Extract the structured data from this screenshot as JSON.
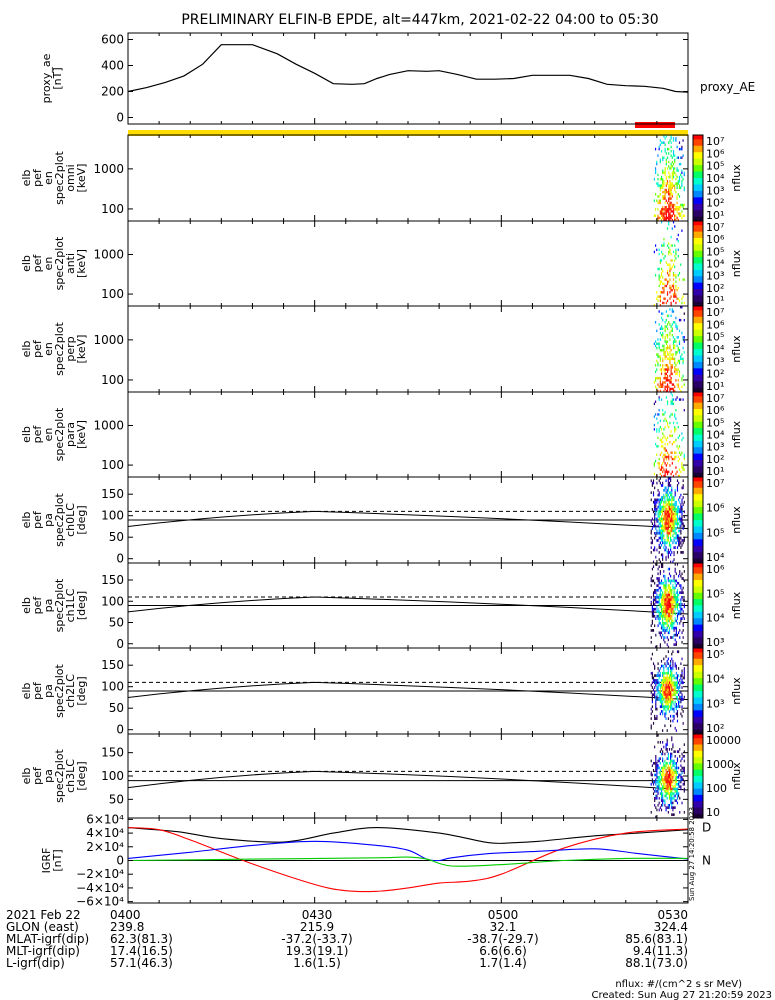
{
  "title": "PRELIMINARY ELFIN-B EPDE, alt=447km, 2021-02-22 04:00 to 05:30",
  "colors": {
    "ae_line": "#000000",
    "yellow_bar": "#ffdd00",
    "red_bar": "#ff0000",
    "igrf_d": "#000000",
    "igrf_a": "#ff0000",
    "igrf_b": "#0000ff",
    "igrf_c": "#00cc00"
  },
  "panels": [
    {
      "ylabel": [
        "proxy_ae",
        "[nT]"
      ],
      "right_label": "proxy_AE",
      "yticks": [
        "600",
        "400",
        "200",
        "0"
      ]
    },
    {
      "ylabel": [
        "elb",
        "pef",
        "en",
        "spec2plot",
        "omni",
        "[keV]"
      ],
      "yticks": [
        "1000",
        "100"
      ],
      "cb_label": "nflux",
      "cb_ticks": [
        "10⁷",
        "10⁶",
        "10⁵",
        "10⁴",
        "10³",
        "10²",
        "10¹"
      ]
    },
    {
      "ylabel": [
        "elb",
        "pef",
        "en",
        "spec2plot",
        "anti",
        "[keV]"
      ],
      "yticks": [
        "1000",
        "100"
      ],
      "cb_label": "nflux",
      "cb_ticks": [
        "10⁷",
        "10⁶",
        "10⁵",
        "10⁴",
        "10³",
        "10²",
        "10¹"
      ]
    },
    {
      "ylabel": [
        "elb",
        "pef",
        "en",
        "spec2plot",
        "perp",
        "[keV]"
      ],
      "yticks": [
        "1000",
        "100"
      ],
      "cb_label": "nflux",
      "cb_ticks": [
        "10⁷",
        "10⁶",
        "10⁵",
        "10⁴",
        "10³",
        "10²",
        "10¹"
      ]
    },
    {
      "ylabel": [
        "elb",
        "pef",
        "en",
        "spec2plot",
        "para",
        "[keV]"
      ],
      "yticks": [
        "1000",
        "100"
      ],
      "cb_label": "nflux",
      "cb_ticks": [
        "10⁷",
        "10⁶",
        "10⁵",
        "10⁴",
        "10³",
        "10²",
        "10¹"
      ]
    },
    {
      "ylabel": [
        "elb",
        "pef",
        "pa",
        "spec2plot",
        "ch0LC",
        "[deg]"
      ],
      "yticks": [
        "150",
        "100",
        "50",
        "0"
      ],
      "cb_label": "nflux",
      "cb_ticks": [
        "10⁷",
        "10⁶",
        "10⁵",
        "10⁴"
      ]
    },
    {
      "ylabel": [
        "elb",
        "pef",
        "pa",
        "spec2plot",
        "ch1LC",
        "[deg]"
      ],
      "yticks": [
        "150",
        "100",
        "50",
        "0"
      ],
      "cb_label": "nflux",
      "cb_ticks": [
        "10⁶",
        "10⁵",
        "10⁴",
        "10³"
      ]
    },
    {
      "ylabel": [
        "elb",
        "pef",
        "pa",
        "spec2plot",
        "ch2LC",
        "[deg]"
      ],
      "yticks": [
        "150",
        "100",
        "50",
        "0"
      ],
      "cb_label": "nflux",
      "cb_ticks": [
        "10⁵",
        "10⁴",
        "10³",
        "10²"
      ]
    },
    {
      "ylabel": [
        "elb",
        "pef",
        "pa",
        "spec2plot",
        "ch3LC",
        "[deg]"
      ],
      "yticks": [
        "150",
        "100",
        "50"
      ],
      "cb_label": "nflux",
      "cb_ticks": [
        "10000",
        "1000",
        "100",
        "10"
      ]
    },
    {
      "ylabel": [
        "IGRF",
        "[nT]"
      ],
      "yticks": [
        "6×10⁴",
        "4×10⁴",
        "2×10⁴",
        "0",
        "−2×10⁴",
        "−4×10⁴",
        "−6×10⁴"
      ],
      "right_labels": [
        "D",
        "N"
      ],
      "stamp": "Sun Aug 27 14:20:58 2023"
    }
  ],
  "footer": {
    "date_label": "2021 Feb 22",
    "rows": [
      {
        "label": "",
        "values": [
          "0400",
          "0430",
          "0500",
          "0530"
        ]
      },
      {
        "label": "GLON (east)",
        "values": [
          "239.8",
          "215.9",
          "32.1",
          "324.4"
        ]
      },
      {
        "label": "MLAT-igrf(dip)",
        "values": [
          "62.3(81.3)",
          "-37.2(-33.7)",
          "-38.7(-29.7)",
          "85.6(83.1)"
        ]
      },
      {
        "label": "MLT-igrf(dip)",
        "values": [
          "17.4(16.5)",
          "19.3(19.1)",
          "6.6(6.6)",
          "9.4(11.3)"
        ]
      },
      {
        "label": "L-igrf(dip)",
        "values": [
          "57.1(46.3)",
          "1.6(1.5)",
          "1.7(1.4)",
          "88.1(73.0)"
        ]
      }
    ],
    "units_note": "nflux: #/(cm^2 s sr MeV)",
    "created": "Created: Sun Aug 27 21:20:59 2023"
  },
  "chart_data": [
    {
      "type": "line",
      "title": "PRELIMINARY ELFIN-B EPDE, alt=447km, 2021-02-22 04:00 to 05:30",
      "xlabel": "",
      "ylabel": "proxy_ae [nT]",
      "x_units": "minutes after 04:00",
      "ylim": [
        -50,
        650
      ],
      "series": [
        {
          "name": "proxy_AE",
          "x": [
            0,
            3,
            6,
            9,
            12,
            15,
            17,
            20,
            24,
            27,
            30,
            33,
            36,
            38,
            40,
            42,
            45,
            48,
            50,
            53,
            56,
            59,
            62,
            65,
            68,
            71,
            74,
            77,
            80,
            83,
            86,
            88,
            90
          ],
          "values": [
            200,
            230,
            270,
            320,
            410,
            560,
            560,
            560,
            490,
            410,
            340,
            260,
            255,
            260,
            300,
            330,
            360,
            355,
            360,
            330,
            295,
            295,
            300,
            325,
            325,
            325,
            300,
            255,
            245,
            240,
            225,
            200,
            195
          ]
        }
      ]
    },
    {
      "type": "heatmap",
      "ylabel": "elb pef en spec2plot omni [keV]",
      "ylim": [
        50,
        7000
      ],
      "y_scale": "log",
      "colorbar": "nflux",
      "clim": [
        1,
        10000000
      ],
      "active_x_range": [
        84.5,
        89.5
      ]
    },
    {
      "type": "heatmap",
      "ylabel": "elb pef en spec2plot anti [keV]",
      "ylim": [
        50,
        7000
      ],
      "y_scale": "log",
      "colorbar": "nflux",
      "clim": [
        1,
        10000000
      ],
      "active_x_range": [
        84.5,
        89.5
      ]
    },
    {
      "type": "heatmap",
      "ylabel": "elb pef en spec2plot perp [keV]",
      "ylim": [
        50,
        7000
      ],
      "y_scale": "log",
      "colorbar": "nflux",
      "clim": [
        1,
        10000000
      ],
      "active_x_range": [
        84.5,
        89.5
      ]
    },
    {
      "type": "heatmap",
      "ylabel": "elb pef en spec2plot para [keV]",
      "ylim": [
        50,
        7000
      ],
      "y_scale": "log",
      "colorbar": "nflux",
      "clim": [
        1,
        10000000
      ],
      "active_x_range": [
        84.5,
        89.5
      ]
    },
    {
      "type": "heatmap",
      "ylabel": "elb pef pa spec2plot ch0LC [deg]",
      "ylim": [
        -10,
        190
      ],
      "colorbar": "nflux",
      "clim": [
        1000,
        10000000
      ],
      "active_x_range": [
        84,
        89.5
      ],
      "series": [
        {
          "name": "solid",
          "x": [
            0,
            30,
            60,
            90
          ],
          "values": [
            75,
            110,
            75,
            70
          ]
        },
        {
          "name": "dashed",
          "x": [
            0,
            90
          ],
          "values": [
            110,
            110
          ]
        }
      ]
    },
    {
      "type": "heatmap",
      "ylabel": "elb pef pa spec2plot ch1LC [deg]",
      "ylim": [
        -10,
        190
      ],
      "colorbar": "nflux",
      "clim": [
        1000,
        1000000
      ],
      "active_x_range": [
        84,
        89.5
      ],
      "series": [
        {
          "name": "solid",
          "x": [
            0,
            30,
            60,
            90
          ],
          "values": [
            75,
            110,
            75,
            70
          ]
        },
        {
          "name": "dashed",
          "x": [
            0,
            90
          ],
          "values": [
            110,
            110
          ]
        }
      ]
    },
    {
      "type": "heatmap",
      "ylabel": "elb pef pa spec2plot ch2LC [deg]",
      "ylim": [
        -10,
        190
      ],
      "colorbar": "nflux",
      "clim": [
        100,
        100000
      ],
      "active_x_range": [
        84,
        89.5
      ],
      "series": [
        {
          "name": "solid",
          "x": [
            0,
            30,
            60,
            90
          ],
          "values": [
            75,
            110,
            75,
            70
          ]
        },
        {
          "name": "dashed",
          "x": [
            0,
            90
          ],
          "values": [
            110,
            110
          ]
        }
      ]
    },
    {
      "type": "heatmap",
      "ylabel": "elb pef pa spec2plot ch3LC [deg]",
      "ylim": [
        10,
        190
      ],
      "colorbar": "nflux",
      "clim": [
        10,
        10000
      ],
      "active_x_range": [
        84,
        89.5
      ],
      "series": [
        {
          "name": "solid",
          "x": [
            0,
            30,
            60,
            90
          ],
          "values": [
            75,
            110,
            75,
            70
          ]
        },
        {
          "name": "dashed",
          "x": [
            0,
            90
          ],
          "values": [
            110,
            110
          ]
        }
      ]
    },
    {
      "type": "line",
      "ylabel": "IGRF [nT]",
      "ylim": [
        -62000,
        62000
      ],
      "x_units": "minutes after 04:00",
      "series": [
        {
          "name": "D",
          "x": [
            0,
            8,
            15,
            25,
            33,
            40,
            50,
            58,
            62,
            66,
            75,
            82,
            90
          ],
          "values": [
            48000,
            42000,
            32000,
            27000,
            40000,
            48000,
            40000,
            26000,
            26000,
            28000,
            36000,
            40000,
            45000
          ]
        },
        {
          "name": "red",
          "x": [
            0,
            5,
            10,
            20,
            30,
            35,
            40,
            45,
            50,
            55,
            60,
            70,
            80,
            90
          ],
          "values": [
            48000,
            45000,
            30000,
            -5000,
            -35000,
            -44000,
            -45000,
            -40000,
            -33000,
            -30000,
            -20000,
            18000,
            40000,
            46000
          ]
        },
        {
          "name": "blue",
          "x": [
            0,
            10,
            20,
            30,
            40,
            45,
            48,
            50,
            52,
            58,
            65,
            75,
            82,
            90
          ],
          "values": [
            3000,
            12000,
            22000,
            28000,
            22000,
            15000,
            2000,
            0,
            4000,
            10000,
            13000,
            17000,
            10000,
            2000
          ]
        },
        {
          "name": "N",
          "x": [
            0,
            20,
            40,
            45,
            48,
            52,
            60,
            70,
            80,
            90
          ],
          "values": [
            0,
            2000,
            4000,
            5000,
            2000,
            -8000,
            -6000,
            0,
            3000,
            3000
          ]
        }
      ]
    }
  ]
}
